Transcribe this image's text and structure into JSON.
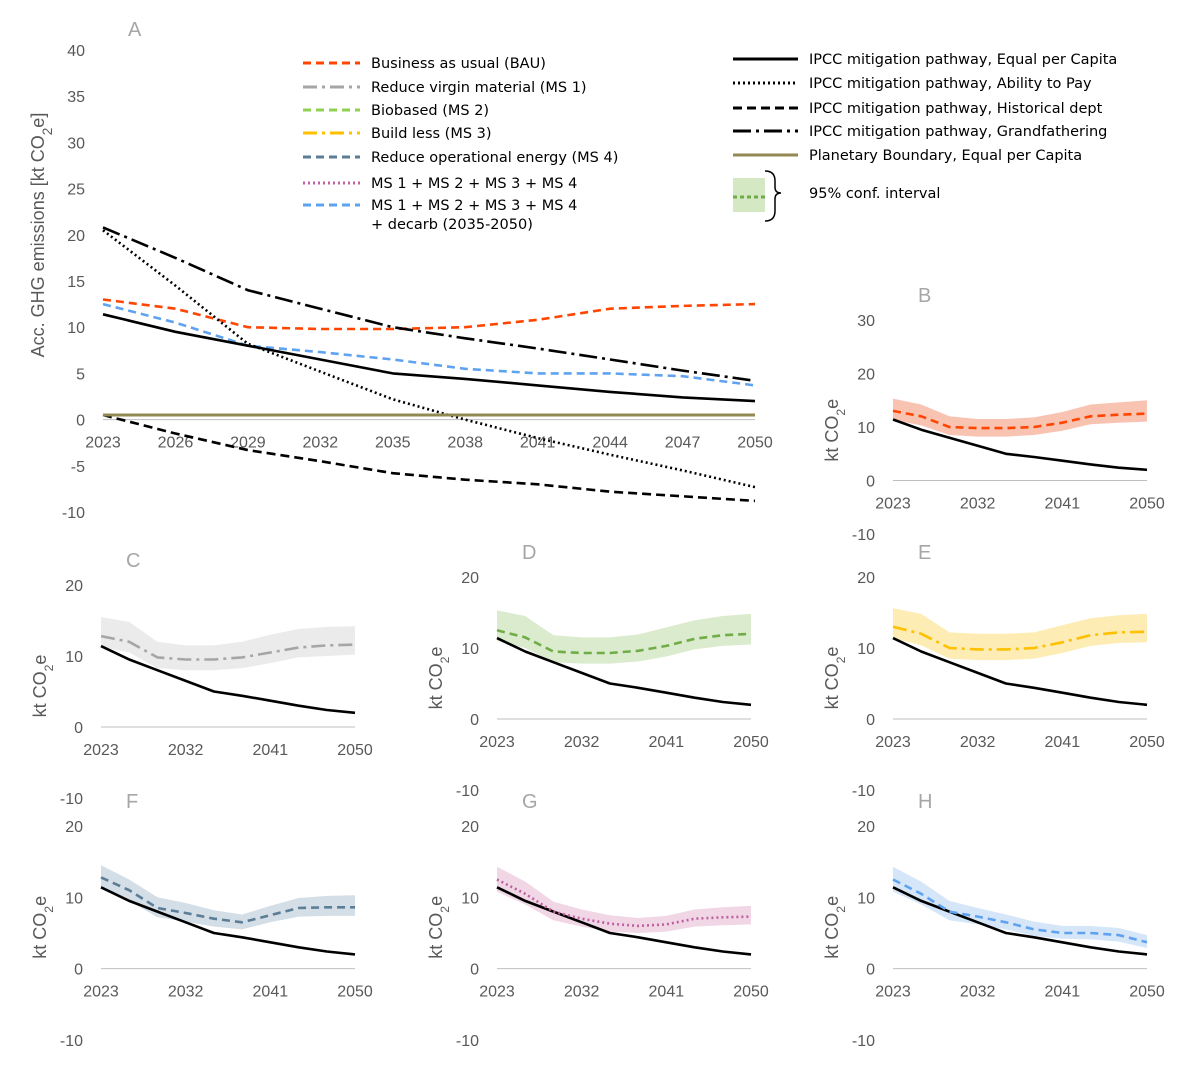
{
  "chart_data": [
    {
      "panel": "A",
      "type": "line",
      "ylabel": "Acc. GHG emissions [kt CO₂e]",
      "ylim": [
        -10,
        40
      ],
      "yticks": [
        40,
        35,
        30,
        25,
        20,
        15,
        10,
        5,
        0,
        -5,
        -10
      ],
      "xticks": [
        "2023",
        "2026",
        "2029",
        "2032",
        "2035",
        "2038",
        "2041",
        "2044",
        "2047",
        "2050"
      ],
      "legend_placement": "top",
      "series": [
        {
          "key": "bau",
          "name": "Business as usual (BAU)",
          "color": "#ff4500",
          "dash": "8,5",
          "x": [
            2023,
            2026,
            2029,
            2032,
            2035,
            2038,
            2041,
            2044,
            2047,
            2050
          ],
          "values": [
            13.0,
            12.0,
            10.0,
            9.8,
            9.8,
            10.0,
            10.8,
            12.0,
            12.3,
            12.5
          ]
        },
        {
          "key": "ms1",
          "name": "Reduce virgin material (MS 1)",
          "color": "#a6a6a6",
          "dash": "14,5,3,5",
          "x": [],
          "values": []
        },
        {
          "key": "ms2",
          "name": "Biobased (MS 2)",
          "color": "#92d050",
          "dash": "8,5",
          "x": [],
          "values": []
        },
        {
          "key": "ms3",
          "name": "Build less (MS 3)",
          "color": "#ffc000",
          "dash": "14,5,3,5",
          "x": [],
          "values": []
        },
        {
          "key": "ms4",
          "name": "Reduce operational energy (MS 4)",
          "color": "#5b7d96",
          "dash": "8,5",
          "x": [],
          "values": []
        },
        {
          "key": "all",
          "name": "MS 1 + MS 2 + MS 3 + MS 4",
          "color": "#c060a0",
          "dash": "2,3",
          "x": [],
          "values": []
        },
        {
          "key": "decarb",
          "name": "MS 1 + MS 2 + MS 3 + MS 4",
          "name2": "+ decarb (2035-2050)",
          "color": "#5fa3f0",
          "dash": "8,5",
          "x": [
            2023,
            2026,
            2029,
            2032,
            2035,
            2038,
            2041,
            2044,
            2047,
            2050
          ],
          "values": [
            12.5,
            10.5,
            8.0,
            7.3,
            6.5,
            5.5,
            5.0,
            5.0,
            4.7,
            3.7
          ]
        },
        {
          "key": "equal",
          "name": "IPCC mitigation pathway, Equal per Capita",
          "color": "#000000",
          "dash": "",
          "x": [
            2023,
            2026,
            2029,
            2032,
            2035,
            2038,
            2041,
            2044,
            2047,
            2050
          ],
          "values": [
            11.4,
            9.5,
            8.0,
            6.5,
            5.0,
            4.4,
            3.7,
            3.0,
            2.4,
            2.0
          ]
        },
        {
          "key": "ability",
          "name": "IPCC mitigation pathway, Ability to Pay",
          "color": "#000000",
          "dash": "2,3",
          "x": [
            2023,
            2026,
            2029,
            2032,
            2035,
            2038,
            2041,
            2044,
            2047,
            2050
          ],
          "values": [
            20.5,
            14.5,
            8.2,
            5.2,
            2.2,
            0.0,
            -2.0,
            -3.8,
            -5.5,
            -7.3
          ]
        },
        {
          "key": "historical",
          "name": "IPCC mitigation pathway, Historical dept",
          "color": "#000000",
          "dash": "9,5",
          "x": [
            2023,
            2026,
            2029,
            2032,
            2035,
            2038,
            2041,
            2044,
            2047,
            2050
          ],
          "values": [
            0.5,
            -1.5,
            -3.3,
            -4.5,
            -5.8,
            -6.5,
            -7.0,
            -7.8,
            -8.3,
            -8.8
          ]
        },
        {
          "key": "grandfathering",
          "name": "IPCC mitigation pathway, Grandfathering",
          "color": "#000000",
          "dash": "18,5,3,5",
          "x": [
            2023,
            2026,
            2029,
            2032,
            2035,
            2038,
            2041,
            2044,
            2047,
            2050
          ],
          "values": [
            20.8,
            17.5,
            14.0,
            12.0,
            10.0,
            8.8,
            7.7,
            6.5,
            5.3,
            4.2
          ]
        },
        {
          "key": "pb",
          "name": "Planetary Boundary, Equal per Capita",
          "color": "#938953",
          "dash": "",
          "x": [
            2023,
            2050
          ],
          "values": [
            0.5,
            0.5
          ]
        }
      ],
      "conf_interval_label": "95% conf. interval"
    },
    {
      "panel": "B",
      "type": "area",
      "ylabel": "kt CO₂e",
      "ylim": [
        -10,
        30
      ],
      "yticks": [
        30,
        20,
        10,
        0,
        -10
      ],
      "xticks": [
        "2023",
        "2032",
        "2041",
        "2050"
      ],
      "scenario": {
        "name": "Business as usual (BAU)",
        "color": "#ff4500",
        "band": "#f8b8a4",
        "dash": "8,5",
        "x": [
          2023,
          2026,
          2029,
          2032,
          2035,
          2038,
          2041,
          2044,
          2047,
          2050
        ],
        "values": [
          13.0,
          12.0,
          10.0,
          9.8,
          9.8,
          10.0,
          10.8,
          12.0,
          12.3,
          12.5
        ],
        "lower": [
          11.3,
          10.3,
          8.5,
          8.2,
          8.2,
          8.5,
          9.3,
          10.5,
          10.8,
          11.0
        ],
        "upper": [
          15.3,
          14.2,
          12.0,
          11.5,
          11.5,
          11.8,
          12.8,
          14.2,
          14.6,
          15.0
        ]
      },
      "reference": {
        "name": "IPCC mitigation pathway, Equal per Capita",
        "x": [
          2023,
          2026,
          2029,
          2032,
          2035,
          2038,
          2041,
          2044,
          2047,
          2050
        ],
        "values": [
          11.4,
          9.5,
          8.0,
          6.5,
          5.0,
          4.4,
          3.7,
          3.0,
          2.4,
          2.0
        ]
      }
    },
    {
      "panel": "C",
      "type": "area",
      "ylabel": "kt CO₂e",
      "ylim": [
        -10,
        20
      ],
      "yticks": [
        20,
        10,
        0,
        -10
      ],
      "xticks": [
        "2023",
        "2032",
        "2041",
        "2050"
      ],
      "scenario": {
        "name": "Reduce virgin material (MS 1)",
        "color": "#a6a6a6",
        "band": "#e8e8e8",
        "dash": "14,5,3,5",
        "x": [
          2023,
          2026,
          2029,
          2032,
          2035,
          2038,
          2041,
          2044,
          2047,
          2050
        ],
        "values": [
          12.8,
          12.0,
          9.8,
          9.5,
          9.5,
          9.8,
          10.5,
          11.2,
          11.5,
          11.6
        ],
        "lower": [
          11.3,
          10.5,
          8.3,
          8.0,
          8.0,
          8.3,
          9.0,
          9.8,
          10.0,
          10.2
        ],
        "upper": [
          15.5,
          14.8,
          12.0,
          11.5,
          11.5,
          12.0,
          13.0,
          13.8,
          14.1,
          14.2
        ]
      },
      "reference": {
        "name": "IPCC mitigation pathway, Equal per Capita",
        "x": [
          2023,
          2026,
          2029,
          2032,
          2035,
          2038,
          2041,
          2044,
          2047,
          2050
        ],
        "values": [
          11.4,
          9.5,
          8.0,
          6.5,
          5.0,
          4.4,
          3.7,
          3.0,
          2.4,
          2.0
        ]
      }
    },
    {
      "panel": "D",
      "type": "area",
      "ylabel": "kt CO₂e",
      "ylim": [
        -10,
        20
      ],
      "yticks": [
        20,
        10,
        0,
        -10
      ],
      "xticks": [
        "2023",
        "2032",
        "2041",
        "2050"
      ],
      "scenario": {
        "name": "Biobased (MS 2)",
        "color": "#70ad47",
        "band": "#d5e8c4",
        "dash": "8,5",
        "x": [
          2023,
          2026,
          2029,
          2032,
          2035,
          2038,
          2041,
          2044,
          2047,
          2050
        ],
        "values": [
          12.5,
          11.5,
          9.5,
          9.3,
          9.3,
          9.6,
          10.3,
          11.3,
          11.8,
          12.0
        ],
        "lower": [
          11.0,
          10.0,
          8.0,
          7.8,
          7.8,
          8.1,
          8.8,
          9.8,
          10.3,
          10.5
        ],
        "upper": [
          15.3,
          14.5,
          11.8,
          11.5,
          11.5,
          11.9,
          12.9,
          13.9,
          14.5,
          14.8
        ]
      },
      "reference": {
        "name": "IPCC mitigation pathway, Equal per Capita",
        "x": [
          2023,
          2026,
          2029,
          2032,
          2035,
          2038,
          2041,
          2044,
          2047,
          2050
        ],
        "values": [
          11.4,
          9.5,
          8.0,
          6.5,
          5.0,
          4.4,
          3.7,
          3.0,
          2.4,
          2.0
        ]
      }
    },
    {
      "panel": "E",
      "type": "area",
      "ylabel": "kt CO₂e",
      "ylim": [
        -10,
        20
      ],
      "yticks": [
        20,
        10,
        0,
        -10
      ],
      "xticks": [
        "2023",
        "2032",
        "2041",
        "2050"
      ],
      "scenario": {
        "name": "Build less (MS 3)",
        "color": "#ffc000",
        "band": "#fde9a6",
        "dash": "14,5,3,5",
        "x": [
          2023,
          2026,
          2029,
          2032,
          2035,
          2038,
          2041,
          2044,
          2047,
          2050
        ],
        "values": [
          13.0,
          12.0,
          10.0,
          9.8,
          9.8,
          10.0,
          10.8,
          11.8,
          12.2,
          12.3
        ],
        "lower": [
          11.4,
          10.4,
          8.5,
          8.3,
          8.3,
          8.5,
          9.3,
          10.3,
          10.7,
          10.8
        ],
        "upper": [
          15.6,
          14.8,
          12.2,
          12.0,
          12.0,
          12.2,
          13.2,
          14.2,
          14.6,
          14.8
        ]
      },
      "reference": {
        "name": "IPCC mitigation pathway, Equal per Capita",
        "x": [
          2023,
          2026,
          2029,
          2032,
          2035,
          2038,
          2041,
          2044,
          2047,
          2050
        ],
        "values": [
          11.4,
          9.5,
          8.0,
          6.5,
          5.0,
          4.4,
          3.7,
          3.0,
          2.4,
          2.0
        ]
      }
    },
    {
      "panel": "F",
      "type": "area",
      "ylabel": "kt CO₂e",
      "ylim": [
        -10,
        20
      ],
      "yticks": [
        20,
        10,
        0,
        -10
      ],
      "xticks": [
        "2023",
        "2032",
        "2041",
        "2050"
      ],
      "scenario": {
        "name": "Reduce operational energy (MS 4)",
        "color": "#5b7d96",
        "band": "#cdd8e3",
        "dash": "8,5",
        "x": [
          2023,
          2026,
          2029,
          2032,
          2035,
          2038,
          2041,
          2044,
          2047,
          2050
        ],
        "values": [
          12.8,
          11.0,
          8.5,
          7.8,
          7.0,
          6.5,
          7.5,
          8.5,
          8.6,
          8.6
        ],
        "lower": [
          11.2,
          9.5,
          7.2,
          6.6,
          5.9,
          5.5,
          6.5,
          7.3,
          7.4,
          7.4
        ],
        "upper": [
          14.5,
          12.5,
          10.0,
          9.2,
          8.2,
          7.6,
          8.8,
          9.9,
          10.2,
          10.3
        ]
      },
      "reference": {
        "name": "IPCC mitigation pathway, Equal per Capita",
        "x": [
          2023,
          2026,
          2029,
          2032,
          2035,
          2038,
          2041,
          2044,
          2047,
          2050
        ],
        "values": [
          11.4,
          9.5,
          8.0,
          6.5,
          5.0,
          4.4,
          3.7,
          3.0,
          2.4,
          2.0
        ]
      }
    },
    {
      "panel": "G",
      "type": "area",
      "ylabel": "kt CO₂e",
      "ylim": [
        -10,
        20
      ],
      "yticks": [
        20,
        10,
        0,
        -10
      ],
      "xticks": [
        "2023",
        "2032",
        "2041",
        "2050"
      ],
      "scenario": {
        "name": "MS 1 + MS 2 + MS 3 + MS 4",
        "color": "#c060a0",
        "band": "#efcfe2",
        "dash": "2,3",
        "x": [
          2023,
          2026,
          2029,
          2032,
          2035,
          2038,
          2041,
          2044,
          2047,
          2050
        ],
        "values": [
          12.5,
          10.5,
          8.0,
          7.0,
          6.3,
          6.0,
          6.2,
          7.0,
          7.2,
          7.3
        ],
        "lower": [
          10.8,
          9.0,
          6.8,
          5.9,
          5.2,
          5.0,
          5.2,
          5.9,
          6.1,
          6.2
        ],
        "upper": [
          14.3,
          12.2,
          9.4,
          8.3,
          7.5,
          7.1,
          7.4,
          8.3,
          8.6,
          8.8
        ]
      },
      "reference": {
        "name": "IPCC mitigation pathway, Equal per Capita",
        "x": [
          2023,
          2026,
          2029,
          2032,
          2035,
          2038,
          2041,
          2044,
          2047,
          2050
        ],
        "values": [
          11.4,
          9.5,
          8.0,
          6.5,
          5.0,
          4.4,
          3.7,
          3.0,
          2.4,
          2.0
        ]
      }
    },
    {
      "panel": "H",
      "type": "area",
      "ylabel": "kt CO₂e",
      "ylim": [
        -10,
        20
      ],
      "yticks": [
        20,
        10,
        0,
        -10
      ],
      "xticks": [
        "2023",
        "2032",
        "2041",
        "2050"
      ],
      "scenario": {
        "name": "MS 1 + MS 2 + MS 3 + MS 4 + decarb (2035-2050)",
        "color": "#5fa3f0",
        "band": "#cfe2f8",
        "dash": "8,5",
        "x": [
          2023,
          2026,
          2029,
          2032,
          2035,
          2038,
          2041,
          2044,
          2047,
          2050
        ],
        "values": [
          12.5,
          10.5,
          8.0,
          7.3,
          6.5,
          5.5,
          5.0,
          5.0,
          4.7,
          3.7
        ],
        "lower": [
          10.8,
          9.0,
          6.8,
          6.2,
          5.5,
          4.6,
          4.2,
          4.1,
          3.8,
          2.9
        ],
        "upper": [
          14.3,
          12.2,
          9.5,
          8.5,
          7.6,
          6.6,
          6.0,
          6.0,
          5.7,
          4.7
        ]
      },
      "reference": {
        "name": "IPCC mitigation pathway, Equal per Capita",
        "x": [
          2023,
          2026,
          2029,
          2032,
          2035,
          2038,
          2041,
          2044,
          2047,
          2050
        ],
        "values": [
          11.4,
          9.5,
          8.0,
          6.5,
          5.0,
          4.4,
          3.7,
          3.0,
          2.4,
          2.0
        ]
      }
    }
  ]
}
